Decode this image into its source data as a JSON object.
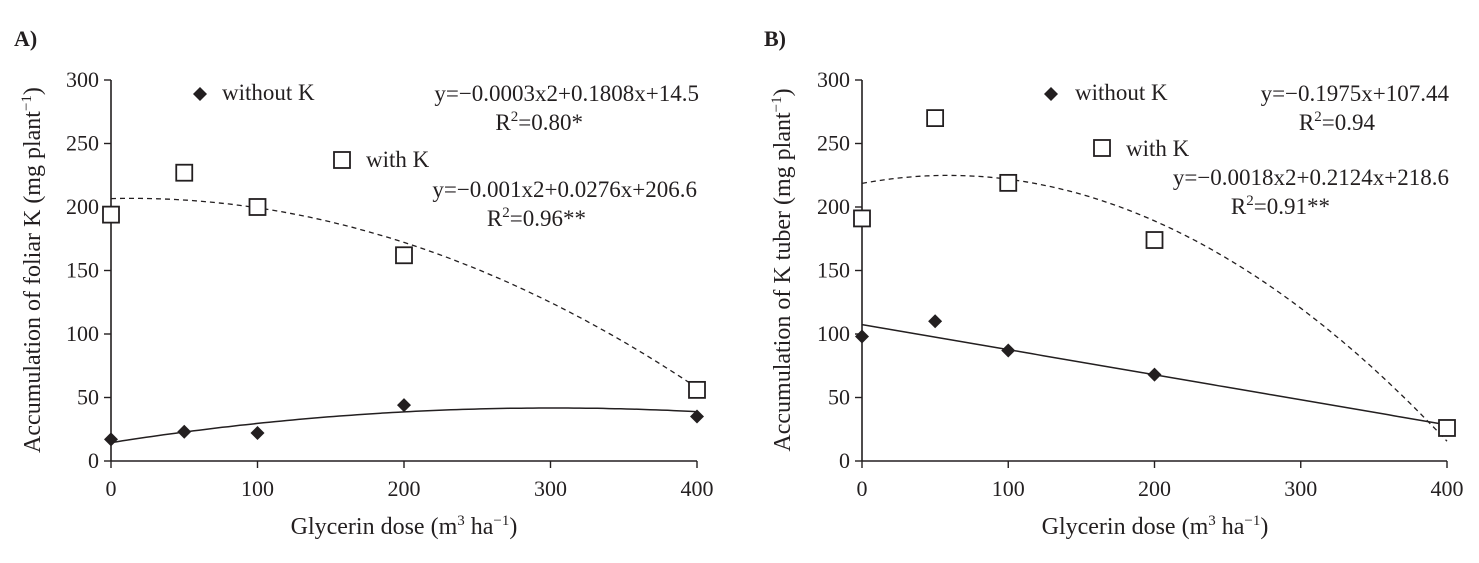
{
  "chart_data": [
    {
      "type": "scatter",
      "panel_label": "A)",
      "xlabel": "Glycerin dose (m",
      "xlabel_sup": "3",
      "xlabel_mid": " ha",
      "xlabel_sup2": "−1",
      "xlabel_end": ")",
      "ylabel": "Accumulation of foliar K (mg plant",
      "ylabel_sup": "−1",
      "ylabel_end": ")",
      "xlim": [
        0,
        400
      ],
      "ylim": [
        0,
        300
      ],
      "xticks": [
        0,
        100,
        200,
        300,
        400
      ],
      "yticks": [
        0,
        50,
        100,
        150,
        200,
        250,
        300
      ],
      "series": [
        {
          "name": "without K",
          "marker": "diamond",
          "x": [
            0,
            50,
            100,
            200,
            400
          ],
          "y": [
            17,
            23,
            22,
            44,
            35
          ],
          "fit": {
            "a": -0.0003,
            "b": 0.1808,
            "c": 14.5,
            "style": "solid"
          },
          "equation": "y=−0.0003x2+0.1808x+14.5",
          "r2_label": "R",
          "r2_sup": "2",
          "r2_value": "=0.80*"
        },
        {
          "name": "with K",
          "marker": "square",
          "x": [
            0,
            50,
            100,
            200,
            400
          ],
          "y": [
            194,
            227,
            200,
            162,
            56
          ],
          "fit": {
            "a": -0.001,
            "b": 0.0276,
            "c": 206.6,
            "style": "dashed"
          },
          "equation": "y=−0.001x2+0.0276x+206.6",
          "r2_label": "R",
          "r2_sup": "2",
          "r2_value": "=0.96**"
        }
      ]
    },
    {
      "type": "scatter",
      "panel_label": "B)",
      "xlabel": "Glycerin dose (m",
      "xlabel_sup": "3",
      "xlabel_mid": " ha",
      "xlabel_sup2": "−1",
      "xlabel_end": ")",
      "ylabel": "Accumulation of K tuber (mg plant",
      "ylabel_sup": "−1",
      "ylabel_end": ")",
      "xlim": [
        0,
        400
      ],
      "ylim": [
        0,
        300
      ],
      "xticks": [
        0,
        100,
        200,
        300,
        400
      ],
      "yticks": [
        0,
        50,
        100,
        150,
        200,
        250,
        300
      ],
      "series": [
        {
          "name": "without K",
          "marker": "diamond",
          "x": [
            0,
            50,
            100,
            200,
            400
          ],
          "y": [
            98,
            110,
            87,
            68,
            27
          ],
          "fit": {
            "a": 0,
            "b": -0.1975,
            "c": 107.44,
            "style": "solid"
          },
          "equation": "y=−0.1975x+107.44",
          "r2_label": "R",
          "r2_sup": "2",
          "r2_value": "=0.94"
        },
        {
          "name": "with K",
          "marker": "square",
          "x": [
            0,
            50,
            100,
            200,
            400
          ],
          "y": [
            191,
            270,
            219,
            174,
            26
          ],
          "fit": {
            "a": -0.0018,
            "b": 0.2124,
            "c": 218.6,
            "style": "dashed"
          },
          "equation": "y=−0.0018x2+0.2124x+218.6",
          "r2_label": "R",
          "r2_sup": "2",
          "r2_value": "=0.91**"
        }
      ]
    }
  ]
}
